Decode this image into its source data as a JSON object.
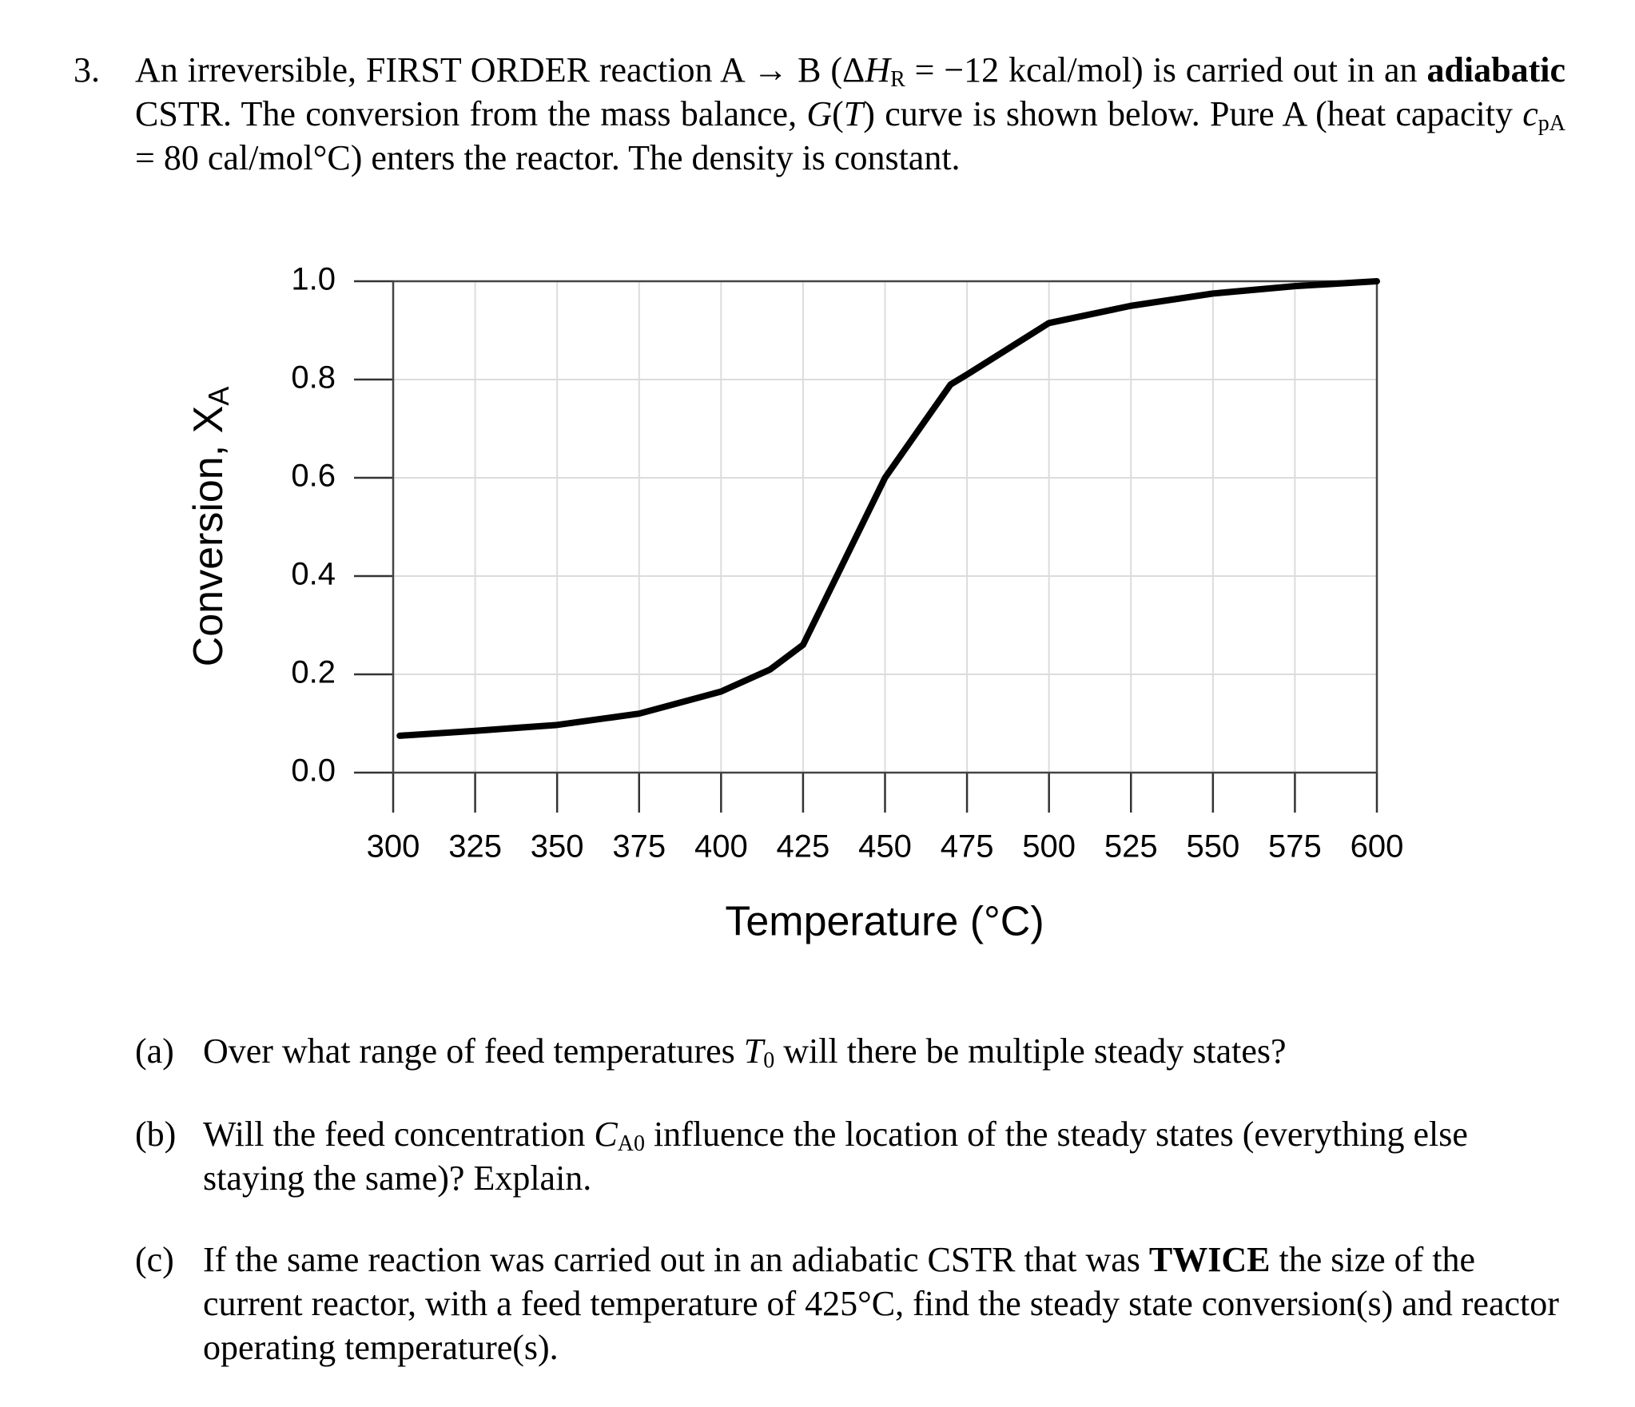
{
  "problem": {
    "number": "3.",
    "runs": [
      "An irreversible, FIRST ORDER reaction A → B (Δ",
      "H",
      "R",
      " = −12 kcal/mol) is carried out in an ",
      "adiabatic",
      " CSTR. The conversion from the mass balance, ",
      "G",
      "(",
      "T",
      ") curve is shown below. Pure A (heat capacity ",
      "c",
      "pA",
      " = 80 cal/mol°C) enters the reactor. The density is constant."
    ]
  },
  "chart_data": {
    "type": "line",
    "x_label": "Temperature (°C)",
    "y_label": "Conversion, X",
    "y_label_sub": "A",
    "x": [
      302,
      325,
      350,
      375,
      400,
      415,
      425,
      450,
      470,
      475,
      500,
      525,
      550,
      575,
      600
    ],
    "values": [
      0.075,
      0.085,
      0.097,
      0.12,
      0.165,
      0.21,
      0.26,
      0.6,
      0.79,
      0.81,
      0.915,
      0.95,
      0.975,
      0.99,
      1.0
    ],
    "color": "#000000",
    "xlim": [
      300,
      600
    ],
    "xticks": [
      300,
      325,
      350,
      375,
      400,
      425,
      450,
      475,
      500,
      525,
      550,
      575,
      600
    ],
    "ylim": [
      0,
      1
    ],
    "yticks": [
      {
        "value": 0,
        "label": "0.0"
      },
      0.2,
      0.4,
      0.6,
      0.8,
      {
        "value": 1,
        "label": "1.0"
      }
    ],
    "grid": true
  },
  "questions": [
    {
      "label": "(a)",
      "runs": [
        "Over what range of feed temperatures ",
        "T",
        "0",
        " will there be multiple steady states?"
      ]
    },
    {
      "label": "(b)",
      "runs": [
        "Will the feed concentration ",
        "C",
        "A0",
        " influence the location of the steady states (everything else staying the same)? Explain."
      ]
    },
    {
      "label": "(c)",
      "runs": [
        "If the same reaction was carried out in an adiabatic CSTR that was ",
        "TWICE",
        " the size of the current reactor, with a feed temperature of 425°C, find the steady state conversion(s) and reactor operating temperature(s)."
      ]
    }
  ]
}
